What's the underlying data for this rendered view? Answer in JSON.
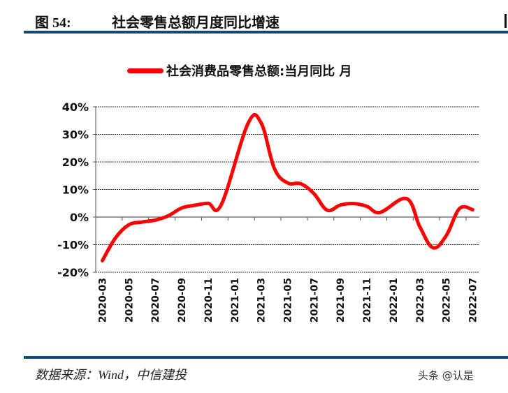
{
  "header": {
    "figure_number": "图 54:",
    "title": "社会零售总额月度同比增速"
  },
  "footer": {
    "source": "数据来源：Wind，中信建投",
    "watermark": "头条 @认是"
  },
  "colors": {
    "line": "#ff0000",
    "rule": "#0f4a73"
  },
  "chart_data": {
    "type": "line",
    "title": "",
    "legend": {
      "position": "top",
      "entries": [
        "社会消费品零售总额:当月同比 月"
      ]
    },
    "grid": true,
    "ylim": [
      -20,
      40
    ],
    "yticks": [
      40,
      30,
      20,
      10,
      0,
      -10,
      -20
    ],
    "ytick_labels": [
      "40%",
      "30%",
      "20%",
      "10%",
      "0%",
      "-10%",
      "-20%"
    ],
    "x": [
      "2020-03",
      "2020-04",
      "2020-05",
      "2020-06",
      "2020-07",
      "2020-08",
      "2020-09",
      "2020-10",
      "2020-11",
      "2020-12",
      "2021-01",
      "2021-02",
      "2021-03",
      "2021-04",
      "2021-05",
      "2021-06",
      "2021-07",
      "2021-08",
      "2021-09",
      "2021-10",
      "2021-11",
      "2021-12",
      "2022-01",
      "2022-02",
      "2022-03",
      "2022-04",
      "2022-05",
      "2022-06",
      "2022-07"
    ],
    "xtick_labels": [
      "2020-03",
      "2020-05",
      "2020-07",
      "2020-09",
      "2020-11",
      "2021-01",
      "2021-03",
      "2021-05",
      "2021-07",
      "2021-09",
      "2021-11",
      "2022-01",
      "2022-03",
      "2022-05",
      "2022-07"
    ],
    "series": [
      {
        "name": "社会消费品零售总额:当月同比 月",
        "values": [
          -15.8,
          -7.5,
          -2.8,
          -1.8,
          -1.1,
          0.5,
          3.3,
          4.3,
          5.0,
          4.6,
          null,
          33.8,
          34.2,
          17.7,
          12.4,
          12.1,
          8.5,
          2.5,
          4.4,
          4.9,
          3.9,
          1.7,
          null,
          6.7,
          -3.5,
          -11.1,
          -6.7,
          3.1,
          2.7
        ]
      }
    ]
  }
}
